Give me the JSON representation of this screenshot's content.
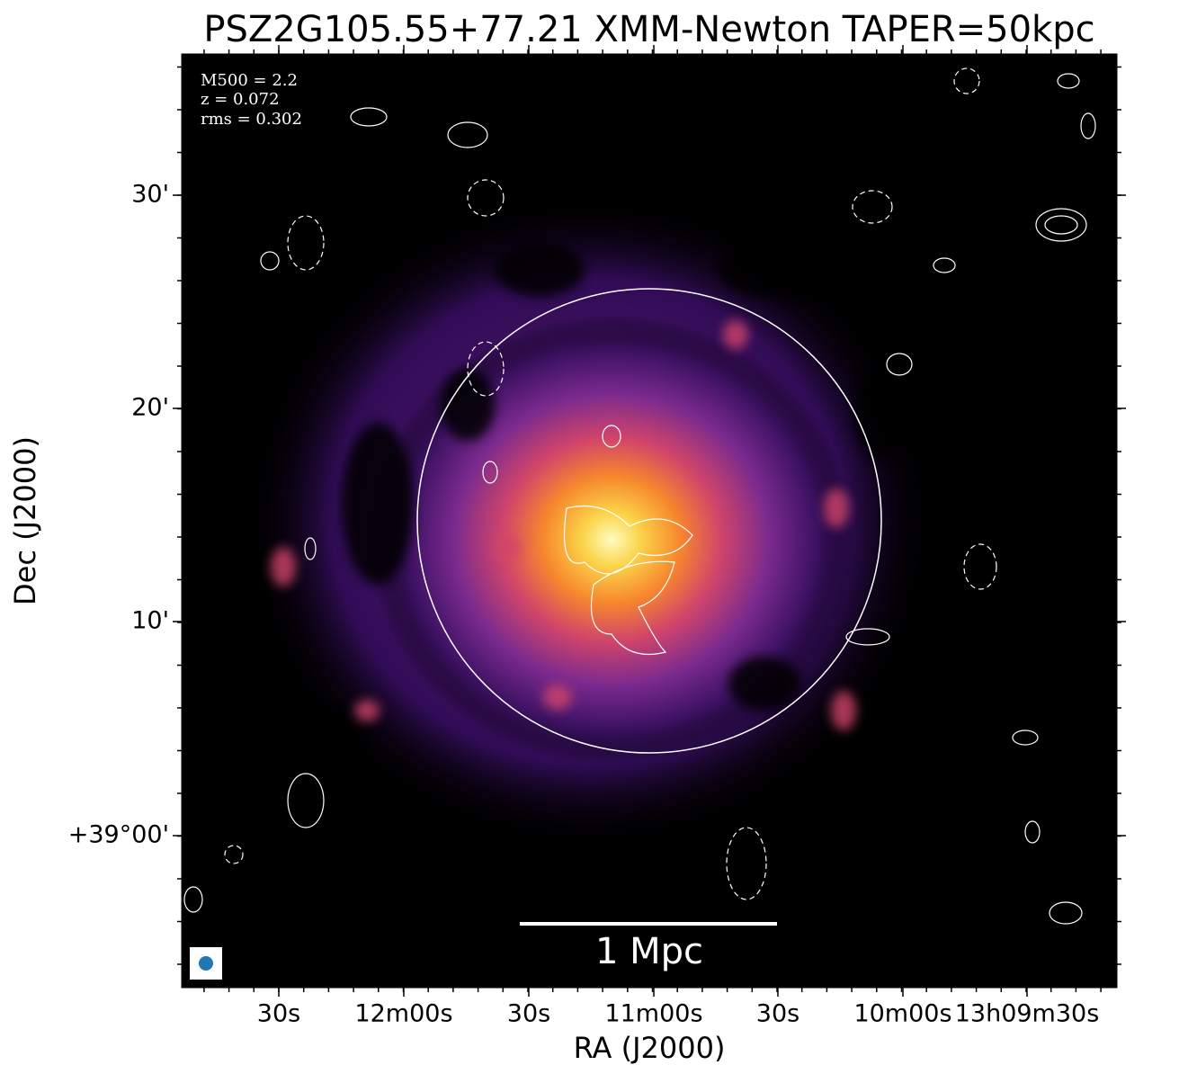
{
  "title": "PSZ2G105.55+77.21 XMM-Newton TAPER=50kpc",
  "x_axis": {
    "label": "RA (J2000)",
    "tick_labels": [
      "30s",
      "12m00s",
      "30s",
      "11m00s",
      "30s",
      "10m00s",
      "13h09m30s"
    ]
  },
  "y_axis": {
    "label": "Dec (J2000)",
    "tick_labels": [
      "30'",
      "20'",
      "10'",
      "+39°00'"
    ]
  },
  "annotations": [
    "M500 = 2.2",
    "z = 0.072",
    "rms = 0.302"
  ],
  "scale_bar": "1 Mpc"
}
